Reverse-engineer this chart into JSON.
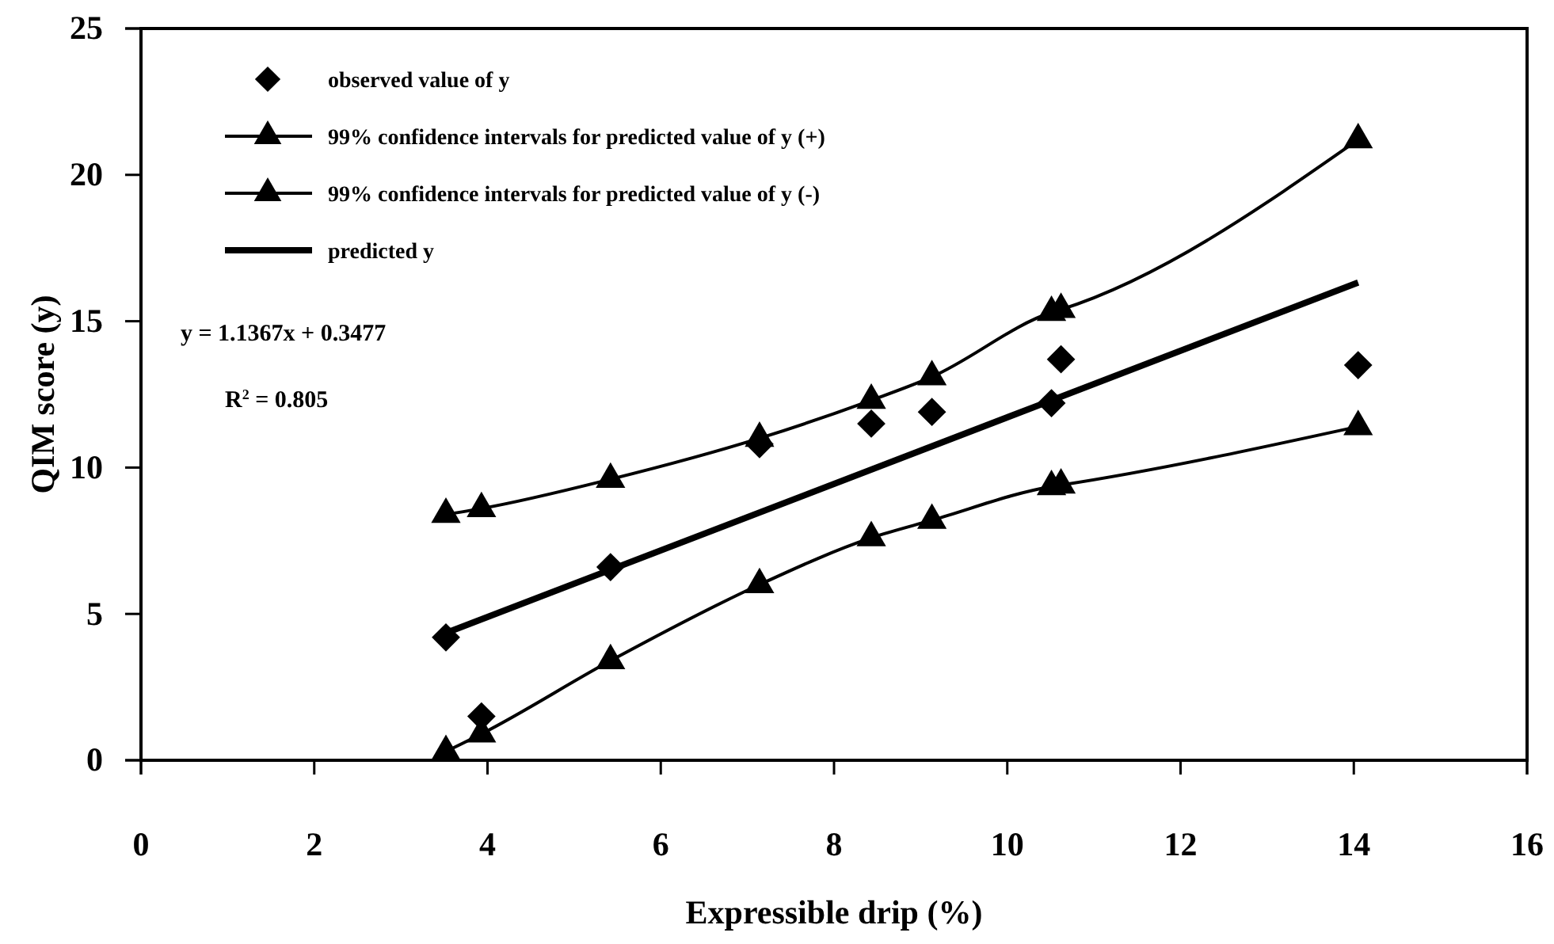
{
  "chart_data": {
    "type": "line",
    "xlabel": "Expressible drip (%)",
    "ylabel": "QIM score (y)",
    "xlim": [
      0,
      16
    ],
    "xticks": [
      0,
      2,
      4,
      6,
      8,
      10,
      12,
      14,
      16
    ],
    "ylim": [
      0,
      25
    ],
    "yticks": [
      0,
      5,
      10,
      15,
      20,
      25
    ],
    "grid": false,
    "legend": "top left",
    "annotations": [
      "y = 1.1367x + 0.3477",
      "R$^{2}$ = 0.805"
    ],
    "series": [
      {
        "name": "observed value of y",
        "type": "scatter",
        "marker": "diamond",
        "color": "#000000",
        "x": [
          3.52,
          3.93,
          5.42,
          7.14,
          8.43,
          9.13,
          10.51,
          10.62,
          14.05
        ],
        "values": [
          4.2,
          1.5,
          6.6,
          10.8,
          11.5,
          11.9,
          12.2,
          13.7,
          13.5
        ]
      },
      {
        "name": "99% confidence intervals for predicted value of y (+)",
        "type": "line",
        "marker": "triangle",
        "color": "#000000",
        "x": [
          3.52,
          3.93,
          5.42,
          7.14,
          8.43,
          9.13,
          10.51,
          10.62,
          14.05
        ],
        "values": [
          8.4,
          8.6,
          9.6,
          11.0,
          12.3,
          13.1,
          15.3,
          15.4,
          21.2
        ]
      },
      {
        "name": "99% confidence intervals for predicted value of y (-)",
        "type": "line",
        "marker": "triangle",
        "color": "#000000",
        "x": [
          3.52,
          3.93,
          5.42,
          7.14,
          8.43,
          9.13,
          10.51,
          10.62,
          14.05
        ],
        "values": [
          0.3,
          0.9,
          3.4,
          6.0,
          7.6,
          8.2,
          9.35,
          9.4,
          11.4
        ]
      },
      {
        "name": "predicted y",
        "marker": "none",
        "color": "#000000",
        "x": [
          3.52,
          14.05
        ],
        "values": [
          4.35,
          16.32
        ]
      }
    ]
  }
}
